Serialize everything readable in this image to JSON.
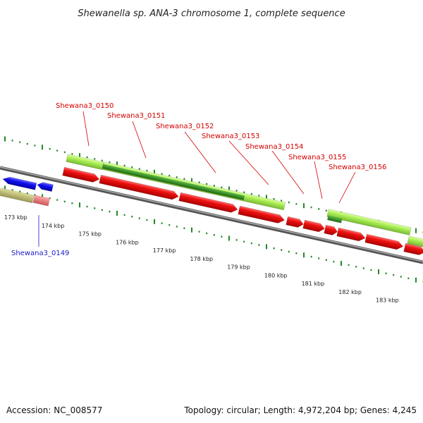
{
  "title": "Shewanella sp. ANA-3 chromosome 1, complete sequence",
  "footer": {
    "accession": "Accession: NC_008577",
    "topology": "Topology: circular; Length: 4,972,204 bp; Genes: 4,245"
  },
  "tick_labels": [
    "173 kbp",
    "174 kbp",
    "175 kbp",
    "176 kbp",
    "177 kbp",
    "178 kbp",
    "179 kbp",
    "180 kbp",
    "181 kbp",
    "182 kbp",
    "183 kbp"
  ],
  "gene_labels": [
    {
      "text": "Shewana3_0149",
      "color": "blue"
    },
    {
      "text": "Shewana3_0150",
      "color": "red"
    },
    {
      "text": "Shewana3_0151",
      "color": "red"
    },
    {
      "text": "Shewana3_0152",
      "color": "red"
    },
    {
      "text": "Shewana3_0153",
      "color": "red"
    },
    {
      "text": "Shewana3_0154",
      "color": "red"
    },
    {
      "text": "Shewana3_0155",
      "color": "red"
    },
    {
      "text": "Shewana3_0156",
      "color": "red"
    }
  ],
  "colors": {
    "cds": "#ee0000",
    "gene_light": "#aaee55",
    "gene_dark": "#339922",
    "blue_feature": "#1111dd",
    "khaki_feature": "#bbbb77",
    "pink_feature": "#ee7777",
    "backbone": "#888888",
    "tick_green": "#228822"
  }
}
